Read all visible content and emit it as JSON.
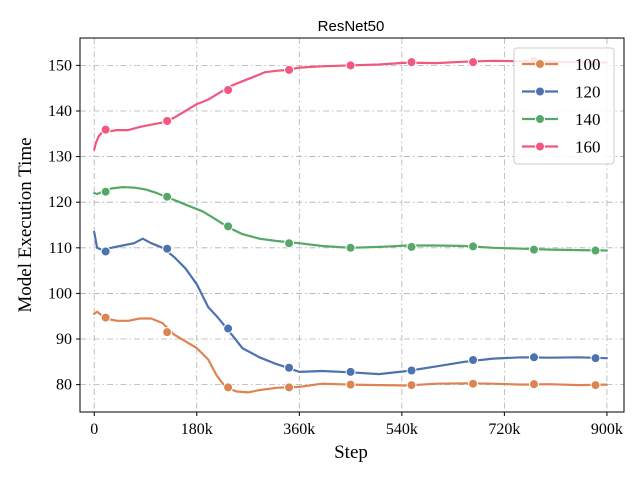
{
  "chart_data": {
    "type": "line",
    "title": "ResNet50",
    "xlabel": "Step",
    "ylabel": "Model Execution Time",
    "xlim": [
      -25000,
      930000
    ],
    "ylim": [
      74,
      156
    ],
    "xticks": [
      0,
      180000,
      360000,
      540000,
      720000,
      900000
    ],
    "xtick_labels": [
      "0",
      "180k",
      "360k",
      "540k",
      "720k",
      "900k"
    ],
    "yticks": [
      80,
      90,
      100,
      110,
      120,
      130,
      140,
      150
    ],
    "ytick_labels": [
      "80",
      "90",
      "100",
      "110",
      "120",
      "130",
      "140",
      "150"
    ],
    "grid": true,
    "legend_position": "top-right",
    "series": [
      {
        "name": "100",
        "color": "#dd8452",
        "x": [
          0,
          5000,
          10000,
          20000,
          40000,
          60000,
          80000,
          100000,
          120000,
          140000,
          160000,
          180000,
          200000,
          215000,
          230000,
          250000,
          270000,
          290000,
          320000,
          360000,
          400000,
          450000,
          500000,
          550000,
          600000,
          650000,
          700000,
          750000,
          800000,
          850000,
          900000
        ],
        "y": [
          95.5,
          96,
          95.5,
          94.5,
          94,
          94,
          94.5,
          94.5,
          93.5,
          91,
          89.5,
          88,
          85.5,
          82,
          79.5,
          78.5,
          78.3,
          78.8,
          79.3,
          79.5,
          80.2,
          80,
          79.9,
          79.8,
          80.2,
          80.3,
          80.2,
          80,
          80.1,
          79.9,
          80
        ],
        "marker_x": [
          20000,
          128000,
          235000,
          342000,
          450000,
          557000,
          665000,
          772000,
          880000
        ],
        "marker_y": [
          94.7,
          91.5,
          79.4,
          79.4,
          80.0,
          79.9,
          80.2,
          80.1,
          79.9
        ]
      },
      {
        "name": "120",
        "color": "#4c72b0",
        "x": [
          0,
          5000,
          15000,
          30000,
          50000,
          70000,
          85000,
          100000,
          120000,
          140000,
          160000,
          180000,
          200000,
          215000,
          235000,
          260000,
          290000,
          320000,
          340000,
          360000,
          400000,
          450000,
          500000,
          550000,
          600000,
          650000,
          700000,
          750000,
          800000,
          850000,
          900000
        ],
        "y": [
          113.5,
          110,
          109.5,
          110,
          110.5,
          111,
          112,
          111,
          110,
          108,
          105.5,
          102,
          97,
          95,
          92,
          88,
          86,
          84.5,
          83.7,
          82.8,
          83,
          82.7,
          82.3,
          83,
          84,
          85,
          85.7,
          86,
          85.9,
          86,
          85.8
        ],
        "marker_x": [
          20000,
          128000,
          235000,
          342000,
          450000,
          557000,
          665000,
          772000,
          880000
        ],
        "marker_y": [
          109.2,
          109.8,
          92.3,
          83.7,
          82.8,
          83.1,
          85.4,
          86.0,
          85.8
        ]
      },
      {
        "name": "140",
        "color": "#55a868",
        "x": [
          0,
          5000,
          15000,
          30000,
          50000,
          70000,
          90000,
          110000,
          130000,
          150000,
          170000,
          190000,
          210000,
          235000,
          260000,
          290000,
          320000,
          360000,
          400000,
          450000,
          500000,
          550000,
          600000,
          650000,
          700000,
          750000,
          800000,
          850000,
          900000
        ],
        "y": [
          122,
          121.8,
          122.3,
          123,
          123.3,
          123.2,
          122.8,
          122,
          121,
          120,
          119,
          118,
          116.5,
          114.5,
          113,
          112,
          111.5,
          111,
          110.4,
          110,
          110.2,
          110.5,
          110.5,
          110.4,
          110,
          109.8,
          109.6,
          109.5,
          109.4
        ],
        "marker_x": [
          20000,
          128000,
          235000,
          342000,
          450000,
          557000,
          665000,
          772000,
          880000
        ],
        "marker_y": [
          122.3,
          121.2,
          114.7,
          111.0,
          110.0,
          110.2,
          110.3,
          109.6,
          109.4
        ]
      },
      {
        "name": "160",
        "color": "#f0587f",
        "x": [
          0,
          3000,
          8000,
          15000,
          25000,
          40000,
          60000,
          80000,
          100000,
          120000,
          140000,
          160000,
          180000,
          200000,
          220000,
          240000,
          260000,
          280000,
          300000,
          320000,
          340000,
          360000,
          400000,
          450000,
          500000,
          550000,
          600000,
          650000,
          700000,
          750000,
          800000,
          850000,
          900000
        ],
        "y": [
          131.5,
          133,
          134.5,
          135.5,
          135.5,
          135.8,
          135.8,
          136.5,
          137,
          137.5,
          138.5,
          140,
          141.5,
          142.5,
          144,
          145.5,
          146.5,
          147.5,
          148.5,
          148.8,
          149,
          149.5,
          149.8,
          150,
          150.2,
          150.6,
          150.5,
          150.8,
          151,
          150.9,
          150.8,
          150.7,
          150.6
        ],
        "marker_x": [
          20000,
          128000,
          235000,
          342000,
          450000,
          557000,
          665000,
          772000,
          880000
        ],
        "marker_y": [
          135.9,
          137.8,
          144.6,
          149.0,
          150.0,
          150.7,
          150.7,
          151.0,
          150.6
        ]
      }
    ]
  }
}
